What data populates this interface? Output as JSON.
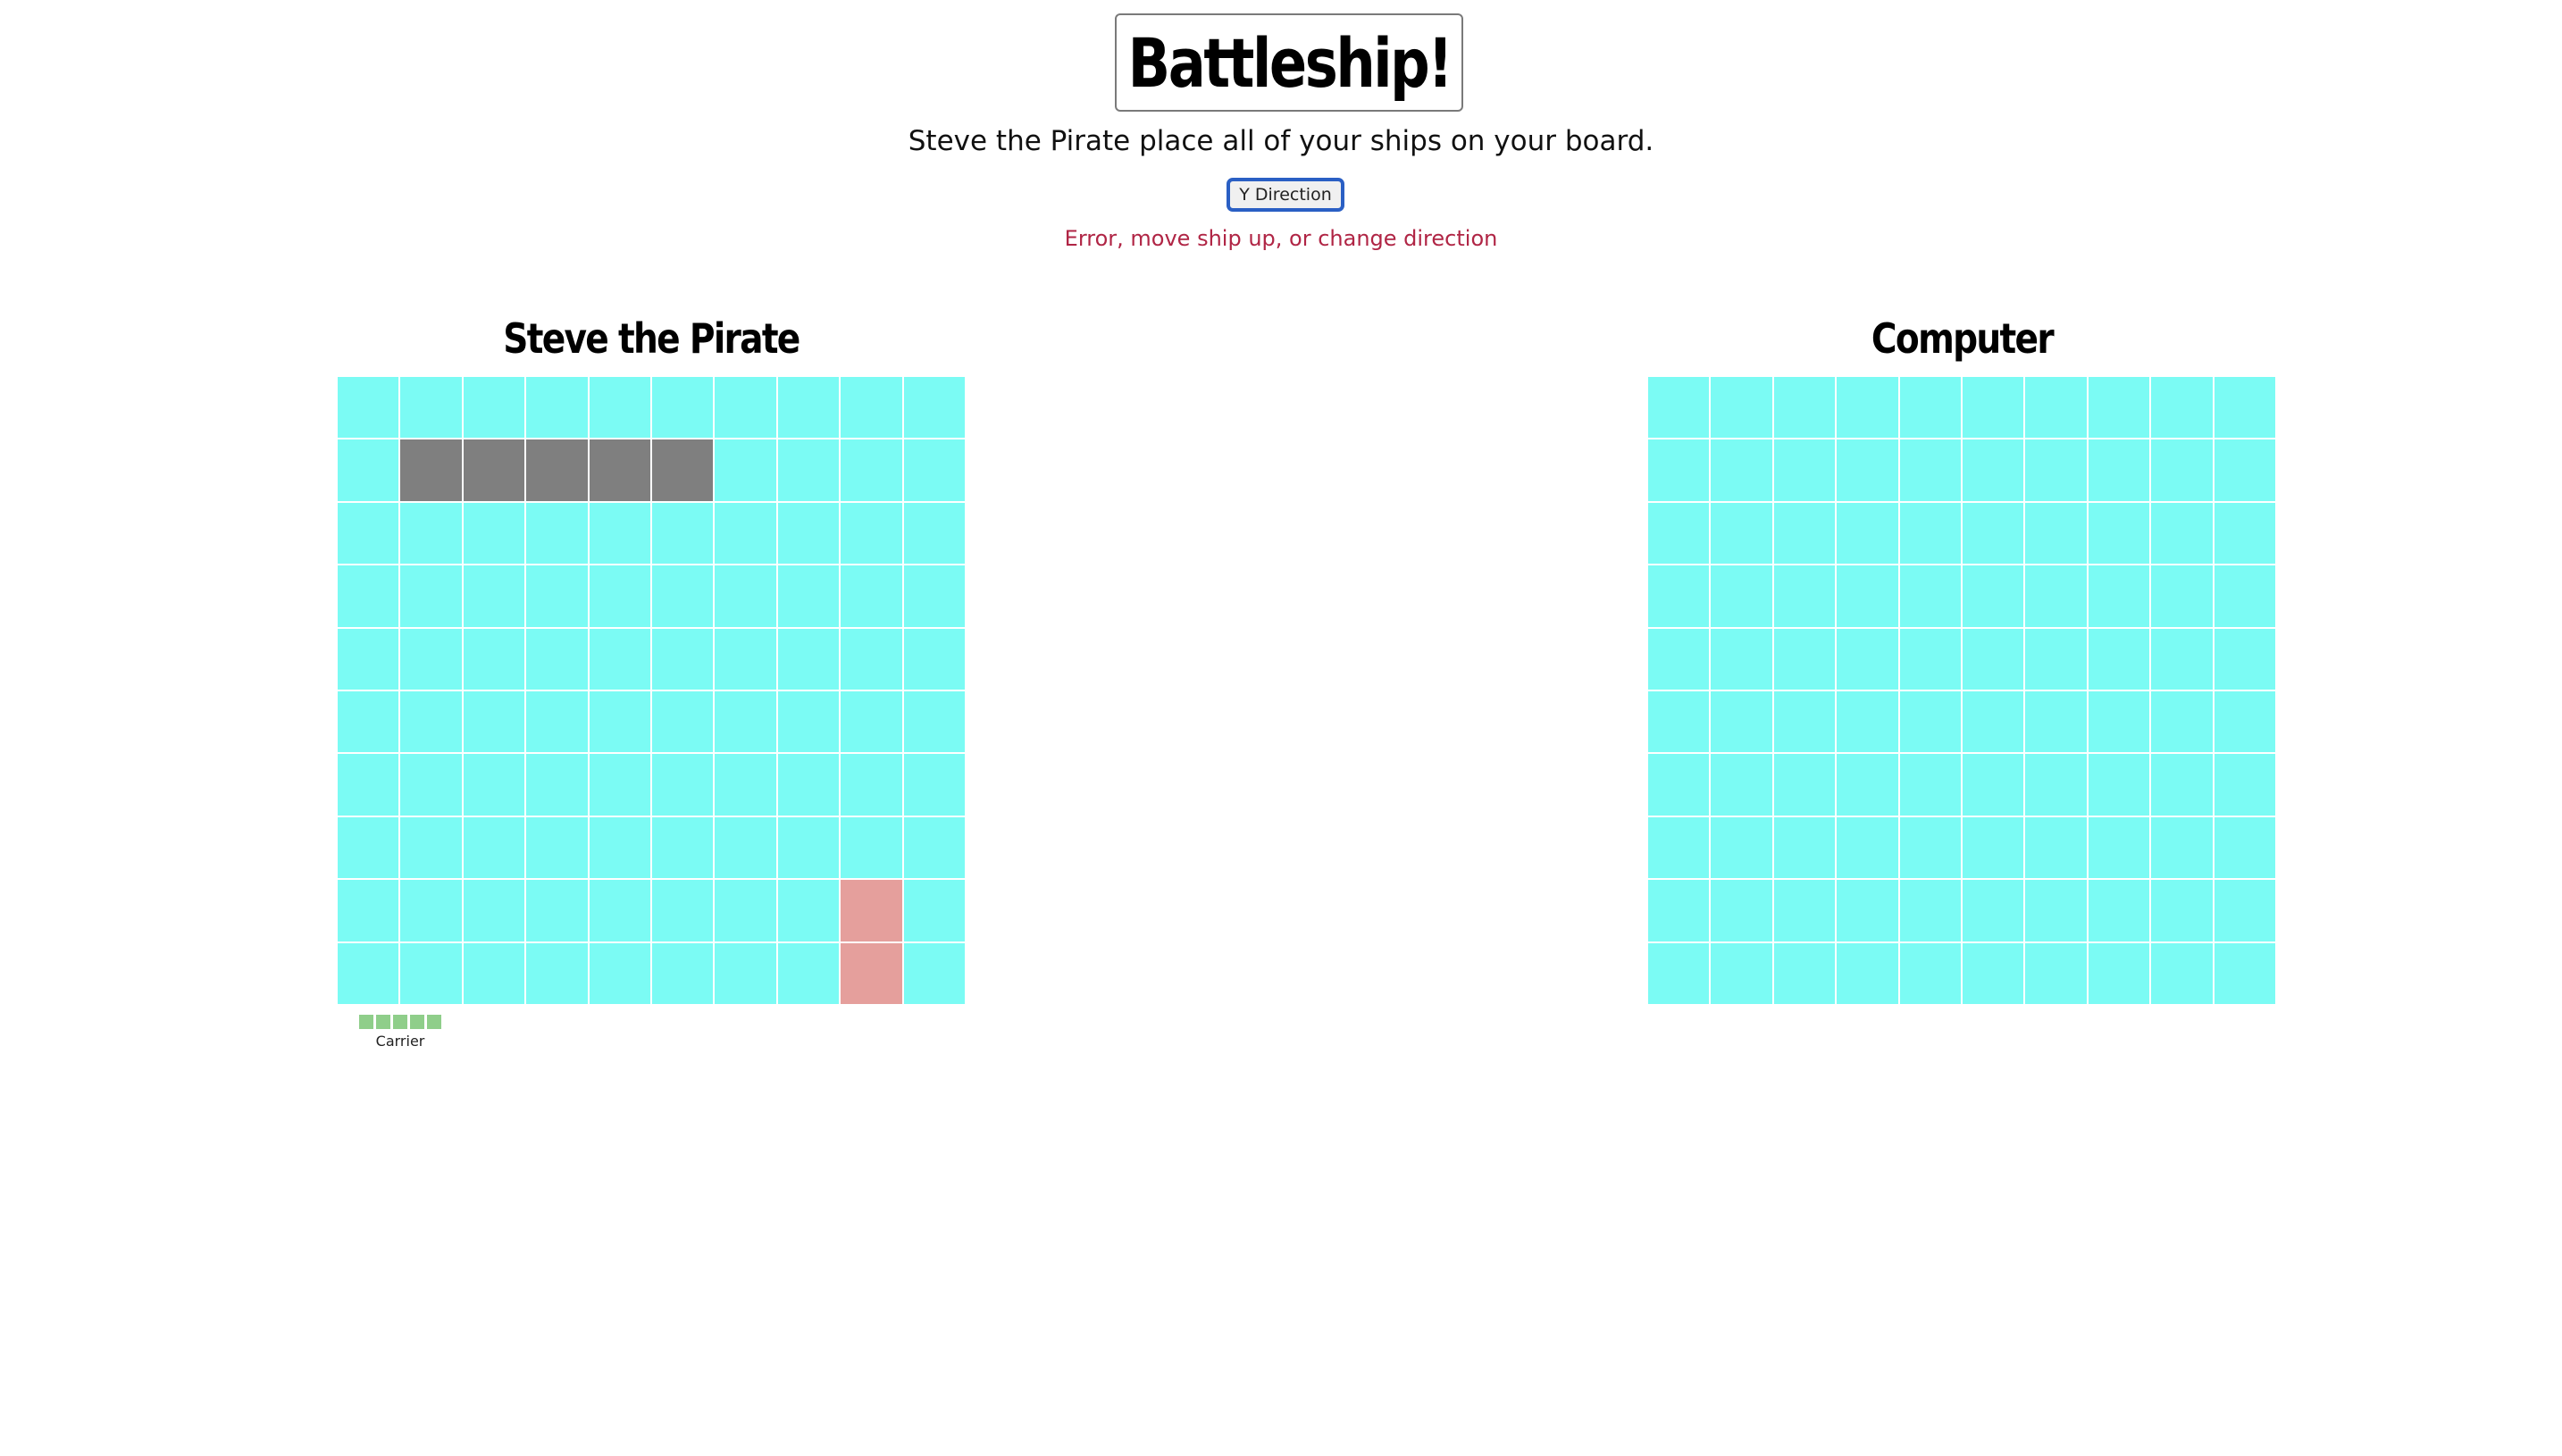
{
  "header": {
    "title": "Battleship!",
    "instructions": "Steve the Pirate place all of your ships on your board.",
    "direction_button": "Y Direction",
    "error": "Error, move ship up, or change direction"
  },
  "boards": {
    "player": {
      "title": "Steve the Pirate",
      "rows": 10,
      "cols": 10,
      "ship_cells": [
        [
          1,
          1
        ],
        [
          1,
          2
        ],
        [
          1,
          3
        ],
        [
          1,
          4
        ],
        [
          1,
          5
        ]
      ],
      "invalid_cells": [
        [
          8,
          8
        ],
        [
          9,
          8
        ]
      ]
    },
    "computer": {
      "title": "Computer",
      "rows": 10,
      "cols": 10,
      "ship_cells": [],
      "invalid_cells": []
    }
  },
  "ship_tray": {
    "ships": [
      {
        "name": "Carrier",
        "length": 5
      }
    ]
  },
  "colors": {
    "water": "#7bfbf4",
    "placed_ship": "#7f7f7f",
    "invalid_placement": "#e59f9c",
    "tray_ship": "#8fce8a",
    "error_text": "#b02545",
    "button_border": "#2a5fc4"
  }
}
